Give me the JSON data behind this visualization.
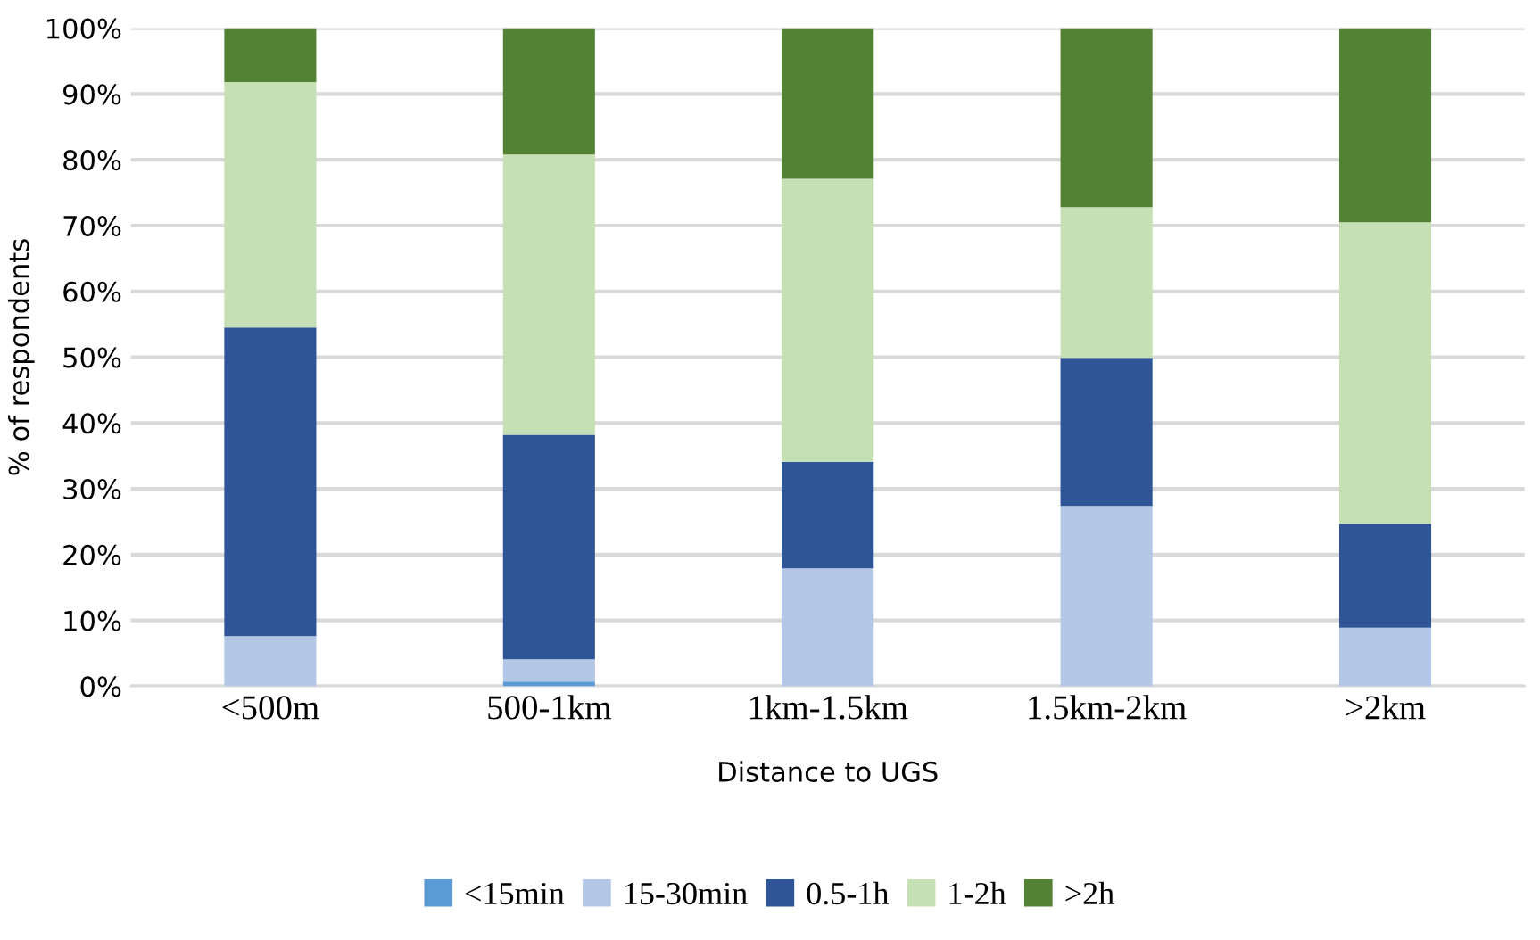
{
  "chart_data": {
    "type": "bar",
    "stacked": true,
    "xlabel": "Distance to UGS",
    "ylabel": "% of respondents",
    "categories": [
      "<500m",
      "500-1km",
      "1km-1.5km",
      "1.5km-2km",
      ">2km"
    ],
    "series": [
      {
        "name": "<15min",
        "color": "#5b9bd5",
        "values": [
          0,
          0.7,
          0,
          0,
          0
        ]
      },
      {
        "name": "15-30min",
        "color": "#b4c7e7",
        "values": [
          7.6,
          3.4,
          17.9,
          27.4,
          8.9
        ]
      },
      {
        "name": "0.5-1h",
        "color": "#2f5597",
        "values": [
          46.9,
          34.1,
          16.2,
          22.5,
          15.8
        ]
      },
      {
        "name": "1-2h",
        "color": "#c5e0b4",
        "values": [
          37.3,
          42.6,
          43.0,
          22.9,
          45.8
        ]
      },
      {
        "name": ">2h",
        "color": "#548235",
        "values": [
          8.2,
          19.2,
          22.9,
          27.2,
          29.5
        ]
      }
    ],
    "ylim": [
      0,
      100
    ],
    "yticks": [
      {
        "value": 0,
        "label": "0%"
      },
      {
        "value": 10,
        "label": "10%"
      },
      {
        "value": 20,
        "label": "20%"
      },
      {
        "value": 30,
        "label": "30%"
      },
      {
        "value": 40,
        "label": "40%"
      },
      {
        "value": 50,
        "label": "50%"
      },
      {
        "value": 60,
        "label": "60%"
      },
      {
        "value": 70,
        "label": "70%"
      },
      {
        "value": 80,
        "label": "80%"
      },
      {
        "value": 90,
        "label": "90%"
      },
      {
        "value": 100,
        "label": "100%"
      }
    ],
    "grid": "y",
    "legend": "bottom"
  }
}
